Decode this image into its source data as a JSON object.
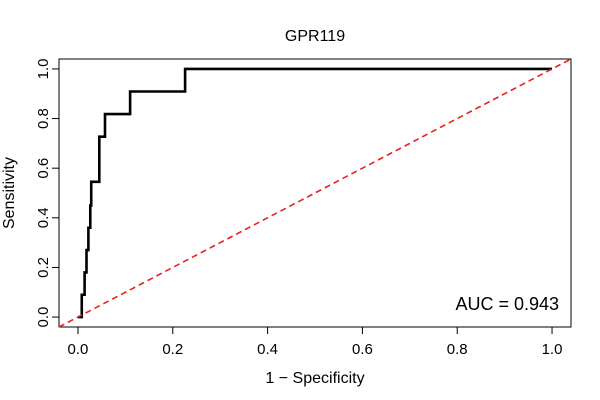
{
  "chart_data": {
    "type": "line",
    "title": "GPR119",
    "xlabel": "1 − Specificity",
    "ylabel": "Sensitivity",
    "xlim": [
      -0.04,
      1.04
    ],
    "ylim": [
      -0.04,
      1.04
    ],
    "xticks": [
      0.0,
      0.2,
      0.4,
      0.6,
      0.8,
      1.0
    ],
    "yticks": [
      0.0,
      0.2,
      0.4,
      0.6,
      0.8,
      1.0
    ],
    "xtick_labels": [
      "0.0",
      "0.2",
      "0.4",
      "0.6",
      "0.8",
      "1.0"
    ],
    "ytick_labels": [
      "0.0",
      "0.2",
      "0.4",
      "0.6",
      "0.8",
      "1.0"
    ],
    "grid": false,
    "annotation": "AUC = 0.943",
    "series": [
      {
        "style": "step",
        "color": "#000000",
        "x": [
          0.0,
          0.008,
          0.008,
          0.014,
          0.014,
          0.018,
          0.018,
          0.022,
          0.022,
          0.026,
          0.026,
          0.028,
          0.028,
          0.031,
          0.031,
          0.045,
          0.045,
          0.052,
          0.052,
          0.057,
          0.057,
          0.11,
          0.11,
          0.226,
          0.226,
          1.0
        ],
        "y": [
          0.0,
          0.0,
          0.09,
          0.09,
          0.18,
          0.18,
          0.27,
          0.27,
          0.36,
          0.36,
          0.45,
          0.45,
          0.545,
          0.545,
          0.545,
          0.545,
          0.727,
          0.727,
          0.727,
          0.727,
          0.818,
          0.818,
          0.909,
          0.909,
          1.0,
          1.0
        ]
      },
      {
        "style": "dashed",
        "color": "#e8221f",
        "x": [
          -0.04,
          1.04
        ],
        "y": [
          -0.04,
          1.04
        ]
      }
    ]
  }
}
